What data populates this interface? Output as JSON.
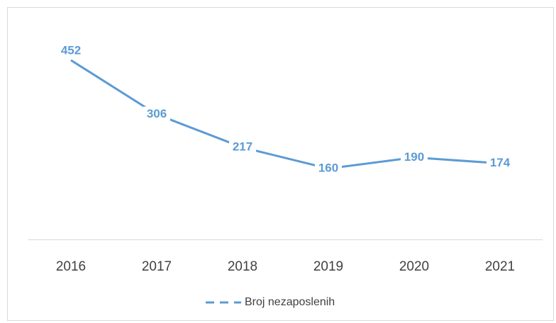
{
  "chart_data": {
    "type": "line",
    "categories": [
      "2016",
      "2017",
      "2018",
      "2019",
      "2020",
      "2021"
    ],
    "series": [
      {
        "name": "Broj nezaposlenih",
        "color": "#5b9bd5",
        "values": [
          452,
          306,
          217,
          160,
          190,
          174
        ]
      }
    ],
    "legend": "bottom",
    "grid": false
  }
}
